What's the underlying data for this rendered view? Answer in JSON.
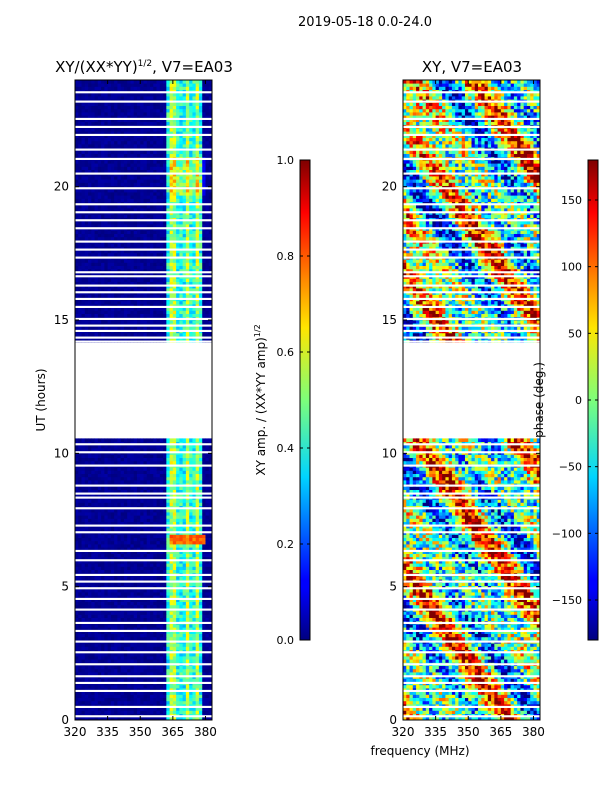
{
  "suptitle": "2019-05-18 0.0-24.0",
  "xlabel": "frequency (MHz)",
  "chart_data": [
    {
      "type": "heatmap",
      "title": "XY/(XX*YY)^1/2, V7=EA03",
      "title_main": "XY/(XX*YY)",
      "title_sup": "1/2",
      "title_tail": ", V7=EA03",
      "xlabel": "frequency (MHz)",
      "ylabel": "UT (hours)",
      "xlim": [
        320,
        383
      ],
      "ylim": [
        0,
        24
      ],
      "xticks": [
        320,
        335,
        350,
        365,
        380
      ],
      "yticks": [
        0,
        5,
        10,
        15,
        20
      ],
      "data_gap_hours": [
        10.5,
        14.1
      ],
      "colorbar": {
        "label": "XY amp. / (XX*YY amp)^1/2",
        "label_main": "XY amp. / (XX*YY amp)",
        "label_sup": "1/2",
        "range": [
          0.0,
          1.0
        ],
        "ticks": [
          "0.0",
          "0.2",
          "0.4",
          "0.6",
          "0.8",
          "1.0"
        ],
        "tick_values": [
          0.0,
          0.2,
          0.4,
          0.6,
          0.8,
          1.0
        ],
        "colormap": "jet"
      }
    },
    {
      "type": "heatmap",
      "title": "XY, V7=EA03",
      "xlabel": "frequency (MHz)",
      "ylabel": "",
      "xlim": [
        320,
        383
      ],
      "ylim": [
        0,
        24
      ],
      "xticks": [
        320,
        335,
        350,
        365,
        380
      ],
      "yticks": [
        0,
        5,
        10,
        15,
        20
      ],
      "data_gap_hours": [
        10.5,
        14.1
      ],
      "colorbar": {
        "label": "phase (deg.)",
        "range": [
          -180,
          180
        ],
        "ticks": [
          "−150",
          "−100",
          "−50",
          "0",
          "50",
          "100",
          "150"
        ],
        "tick_values": [
          -150,
          -100,
          -50,
          0,
          50,
          100,
          150
        ],
        "colormap": "jet"
      }
    }
  ]
}
